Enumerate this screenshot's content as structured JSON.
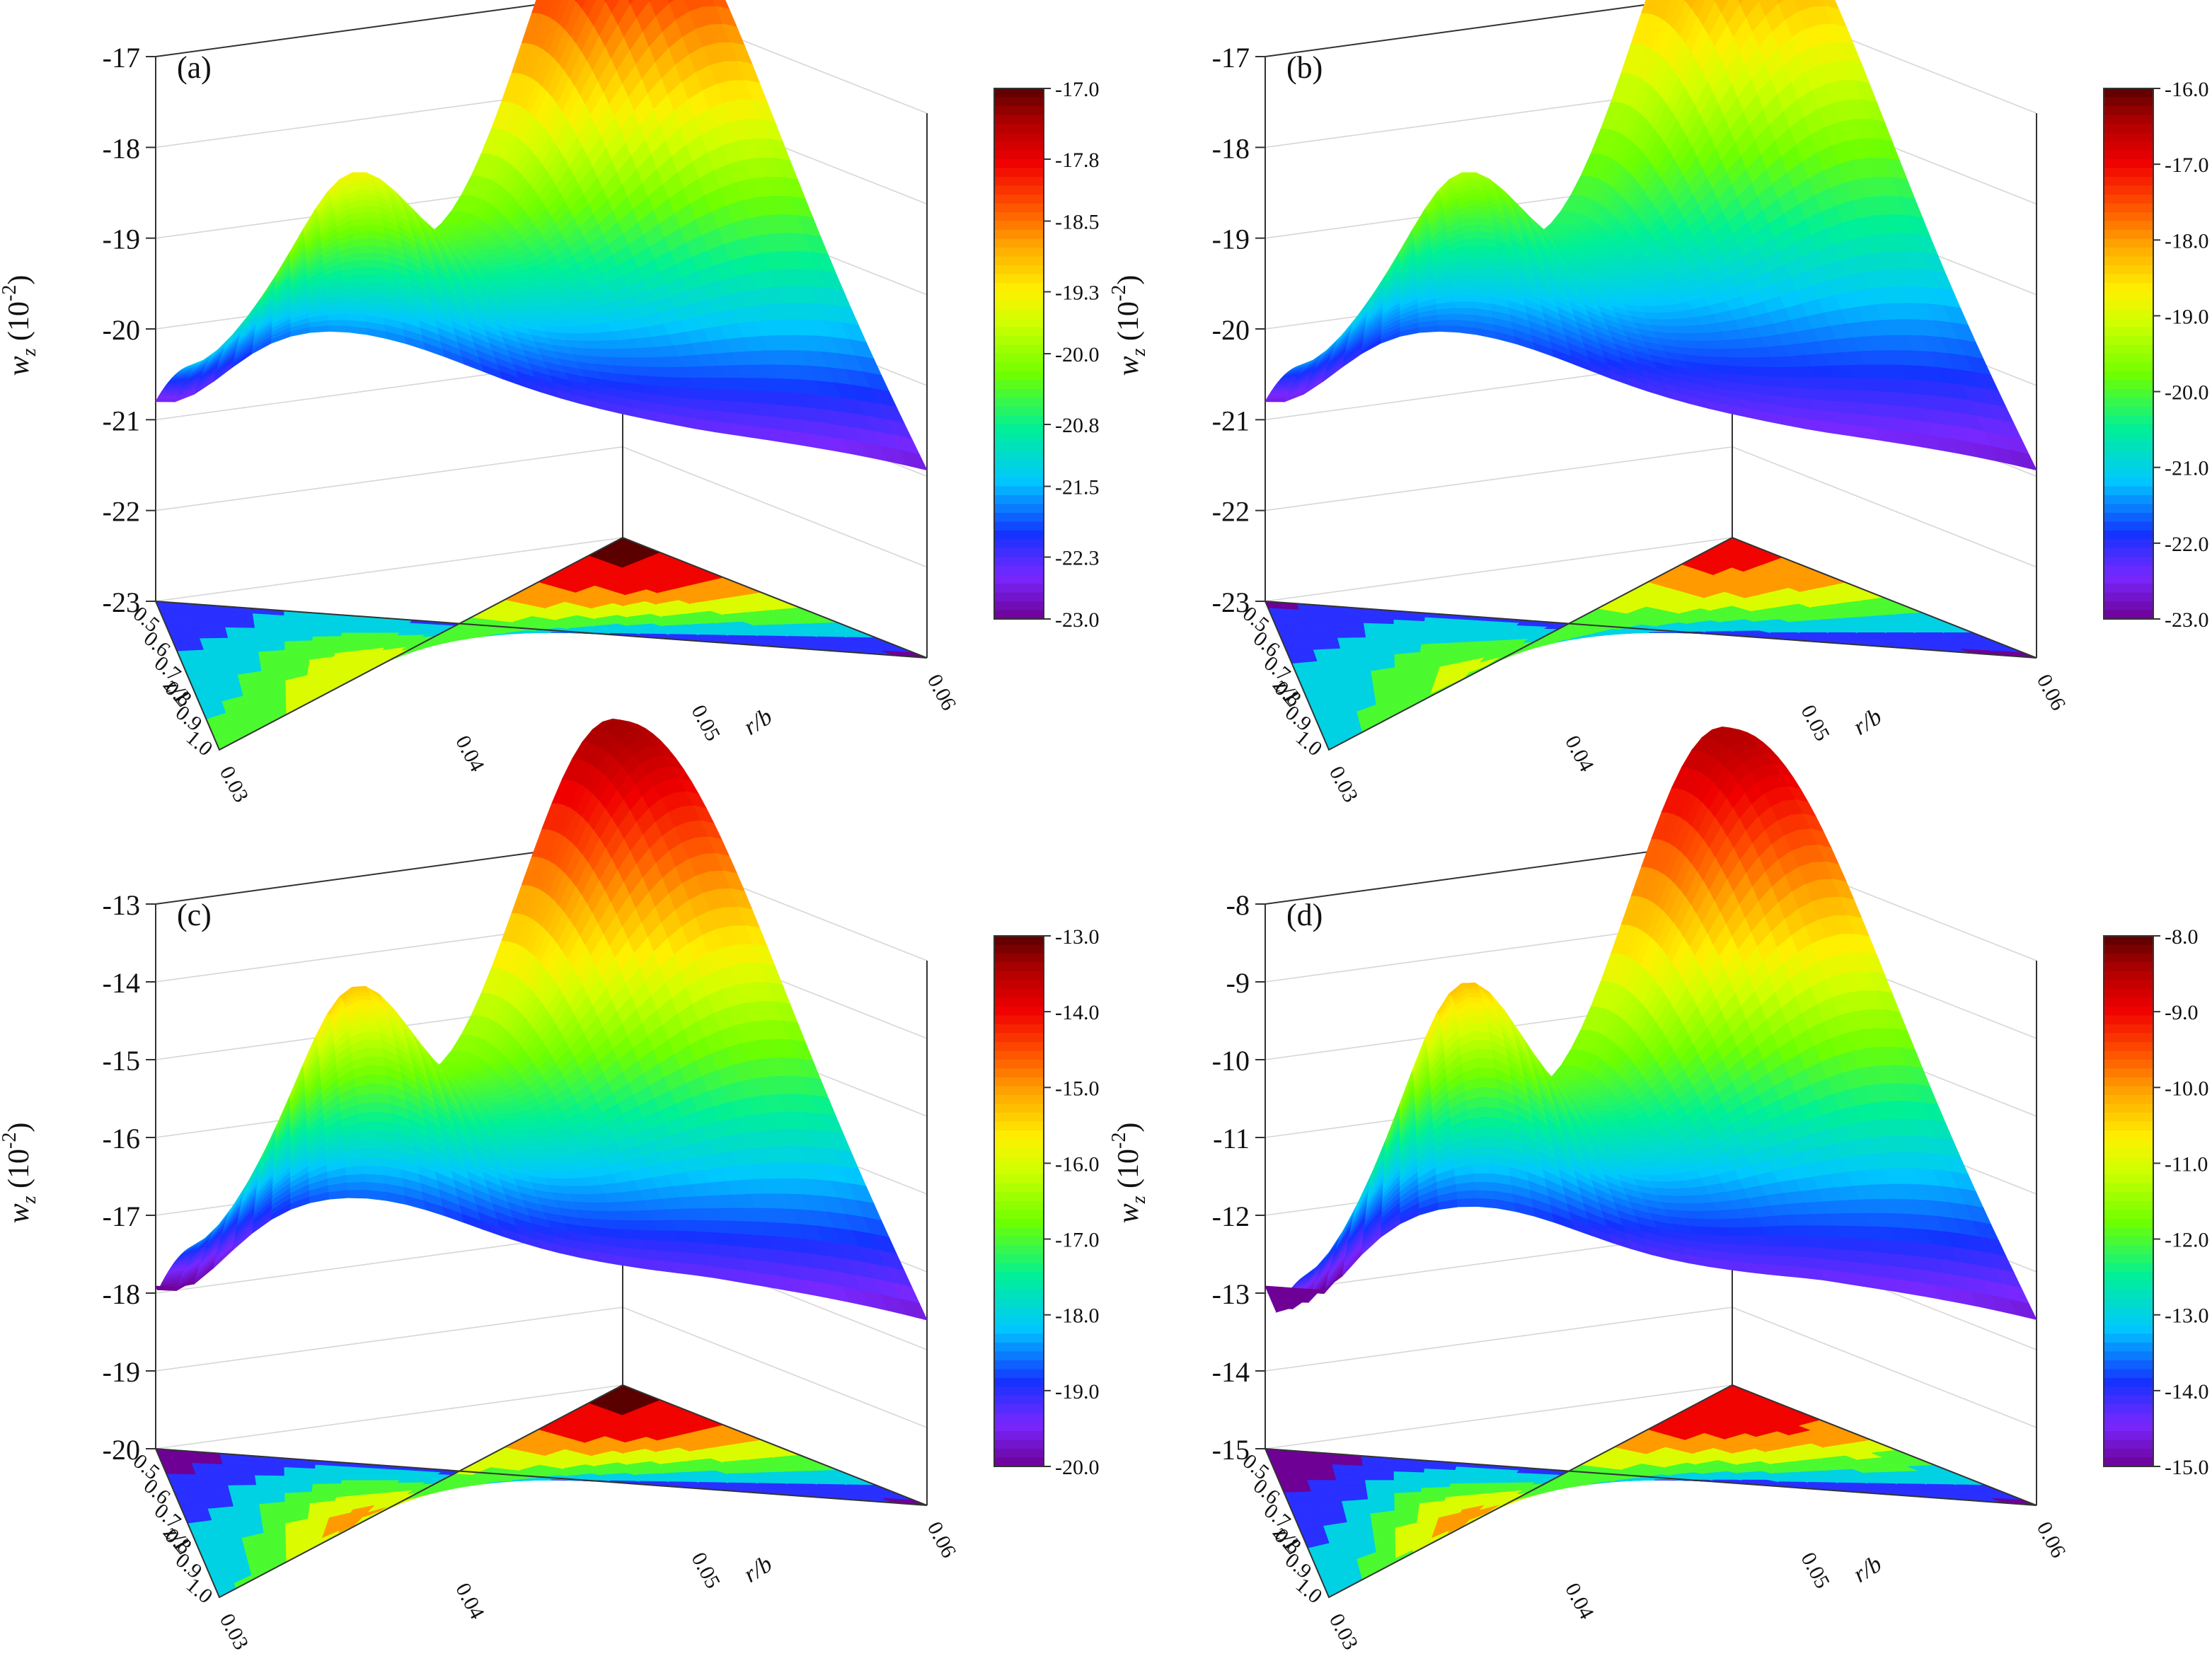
{
  "chart_data": [
    {
      "type": "surface3d",
      "panel_label": "(a)",
      "zlabel_main": "w",
      "zlabel_sub": "z",
      "zlabel_unit_open": " (10",
      "zlabel_unit_exp": "-2",
      "zlabel_unit_close": ")",
      "xlabel": "r/b",
      "ylabel": "z/L",
      "x_ticks": [
        "0.03",
        "0.04",
        "0.05",
        "0.06"
      ],
      "y_ticks": [
        "0.5",
        "0.6",
        "0.7",
        "0.8",
        "0.9",
        "1.0"
      ],
      "z_ticks": [
        "-17",
        "-18",
        "-19",
        "-20",
        "-21",
        "-22",
        "-23"
      ],
      "zlim": [
        -23,
        -17
      ],
      "colorbar_ticks": [
        "-17.0",
        "-17.8",
        "-18.5",
        "-19.3",
        "-20.0",
        "-20.8",
        "-21.5",
        "-22.3",
        "-23.0"
      ],
      "colorbar_range": [
        -23.0,
        -17.0
      ],
      "shape": {
        "ridge_near": -19.4,
        "peak_far": -17.3,
        "saddle": -20.9,
        "back_left": -20.7,
        "left_near": -21.8,
        "right_far": -22.9
      }
    },
    {
      "type": "surface3d",
      "panel_label": "(b)",
      "zlabel_main": "w",
      "zlabel_sub": "z",
      "zlabel_unit_open": " (10",
      "zlabel_unit_exp": "-2",
      "zlabel_unit_close": ")",
      "xlabel": "r/b",
      "ylabel": "z/L",
      "x_ticks": [
        "0.03",
        "0.04",
        "0.05",
        "0.06"
      ],
      "y_ticks": [
        "0.5",
        "0.6",
        "0.7",
        "0.8",
        "0.9",
        "1.0"
      ],
      "z_ticks": [
        "-17",
        "-18",
        "-19",
        "-20",
        "-21",
        "-22",
        "-23"
      ],
      "zlim": [
        -23,
        -17
      ],
      "colorbar_ticks": [
        "-16.0",
        "-17.0",
        "-18.0",
        "-19.0",
        "-20.0",
        "-21.0",
        "-22.0",
        "-23.0"
      ],
      "colorbar_range": [
        -23.0,
        -16.0
      ],
      "shape": {
        "ridge_near": -19.4,
        "peak_far": -17.3,
        "saddle": -20.9,
        "back_left": -20.7,
        "left_near": -21.8,
        "right_far": -22.9
      }
    },
    {
      "type": "surface3d",
      "panel_label": "(c)",
      "zlabel_main": "w",
      "zlabel_sub": "z",
      "zlabel_unit_open": " (10",
      "zlabel_unit_exp": "-2",
      "zlabel_unit_close": ")",
      "xlabel": "r/b",
      "ylabel": "z/L",
      "x_ticks": [
        "0.03",
        "0.04",
        "0.05",
        "0.06"
      ],
      "y_ticks": [
        "0.5",
        "0.6",
        "0.7",
        "0.8",
        "0.9",
        "1.0"
      ],
      "z_ticks": [
        "-13",
        "-14",
        "-15",
        "-16",
        "-17",
        "-18",
        "-19",
        "-20"
      ],
      "zlim": [
        -20,
        -13
      ],
      "colorbar_ticks": [
        "-13.0",
        "-14.0",
        "-15.0",
        "-16.0",
        "-17.0",
        "-18.0",
        "-19.0",
        "-20.0"
      ],
      "colorbar_range": [
        -20.0,
        -13.0
      ],
      "shape": {
        "ridge_near": -15.0,
        "peak_far": -13.4,
        "saddle": -17.3,
        "back_left": -17.7,
        "left_near": -19.1,
        "right_far": -19.9
      }
    },
    {
      "type": "surface3d",
      "panel_label": "(d)",
      "zlabel_main": "w",
      "zlabel_sub": "z",
      "zlabel_unit_open": " (10",
      "zlabel_unit_exp": "-2",
      "zlabel_unit_close": ")",
      "xlabel": "r/b",
      "ylabel": "z/L",
      "x_ticks": [
        "0.03",
        "0.04",
        "0.05",
        "0.06"
      ],
      "y_ticks": [
        "0.5",
        "0.6",
        "0.7",
        "0.8",
        "0.9",
        "1.0"
      ],
      "z_ticks": [
        "-8",
        "-9",
        "-10",
        "-11",
        "-12",
        "-13",
        "-14",
        "-15"
      ],
      "zlim": [
        -15,
        -8
      ],
      "colorbar_ticks": [
        "-8.0",
        "-9.0",
        "-10.0",
        "-11.0",
        "-12.0",
        "-13.0",
        "-14.0",
        "-15.0"
      ],
      "colorbar_range": [
        -15.0,
        -8.0
      ],
      "shape": {
        "ridge_near": -9.9,
        "peak_far": -8.5,
        "saddle": -12.5,
        "back_left": -13.0,
        "left_near": -14.7,
        "right_far": -14.9
      }
    }
  ]
}
